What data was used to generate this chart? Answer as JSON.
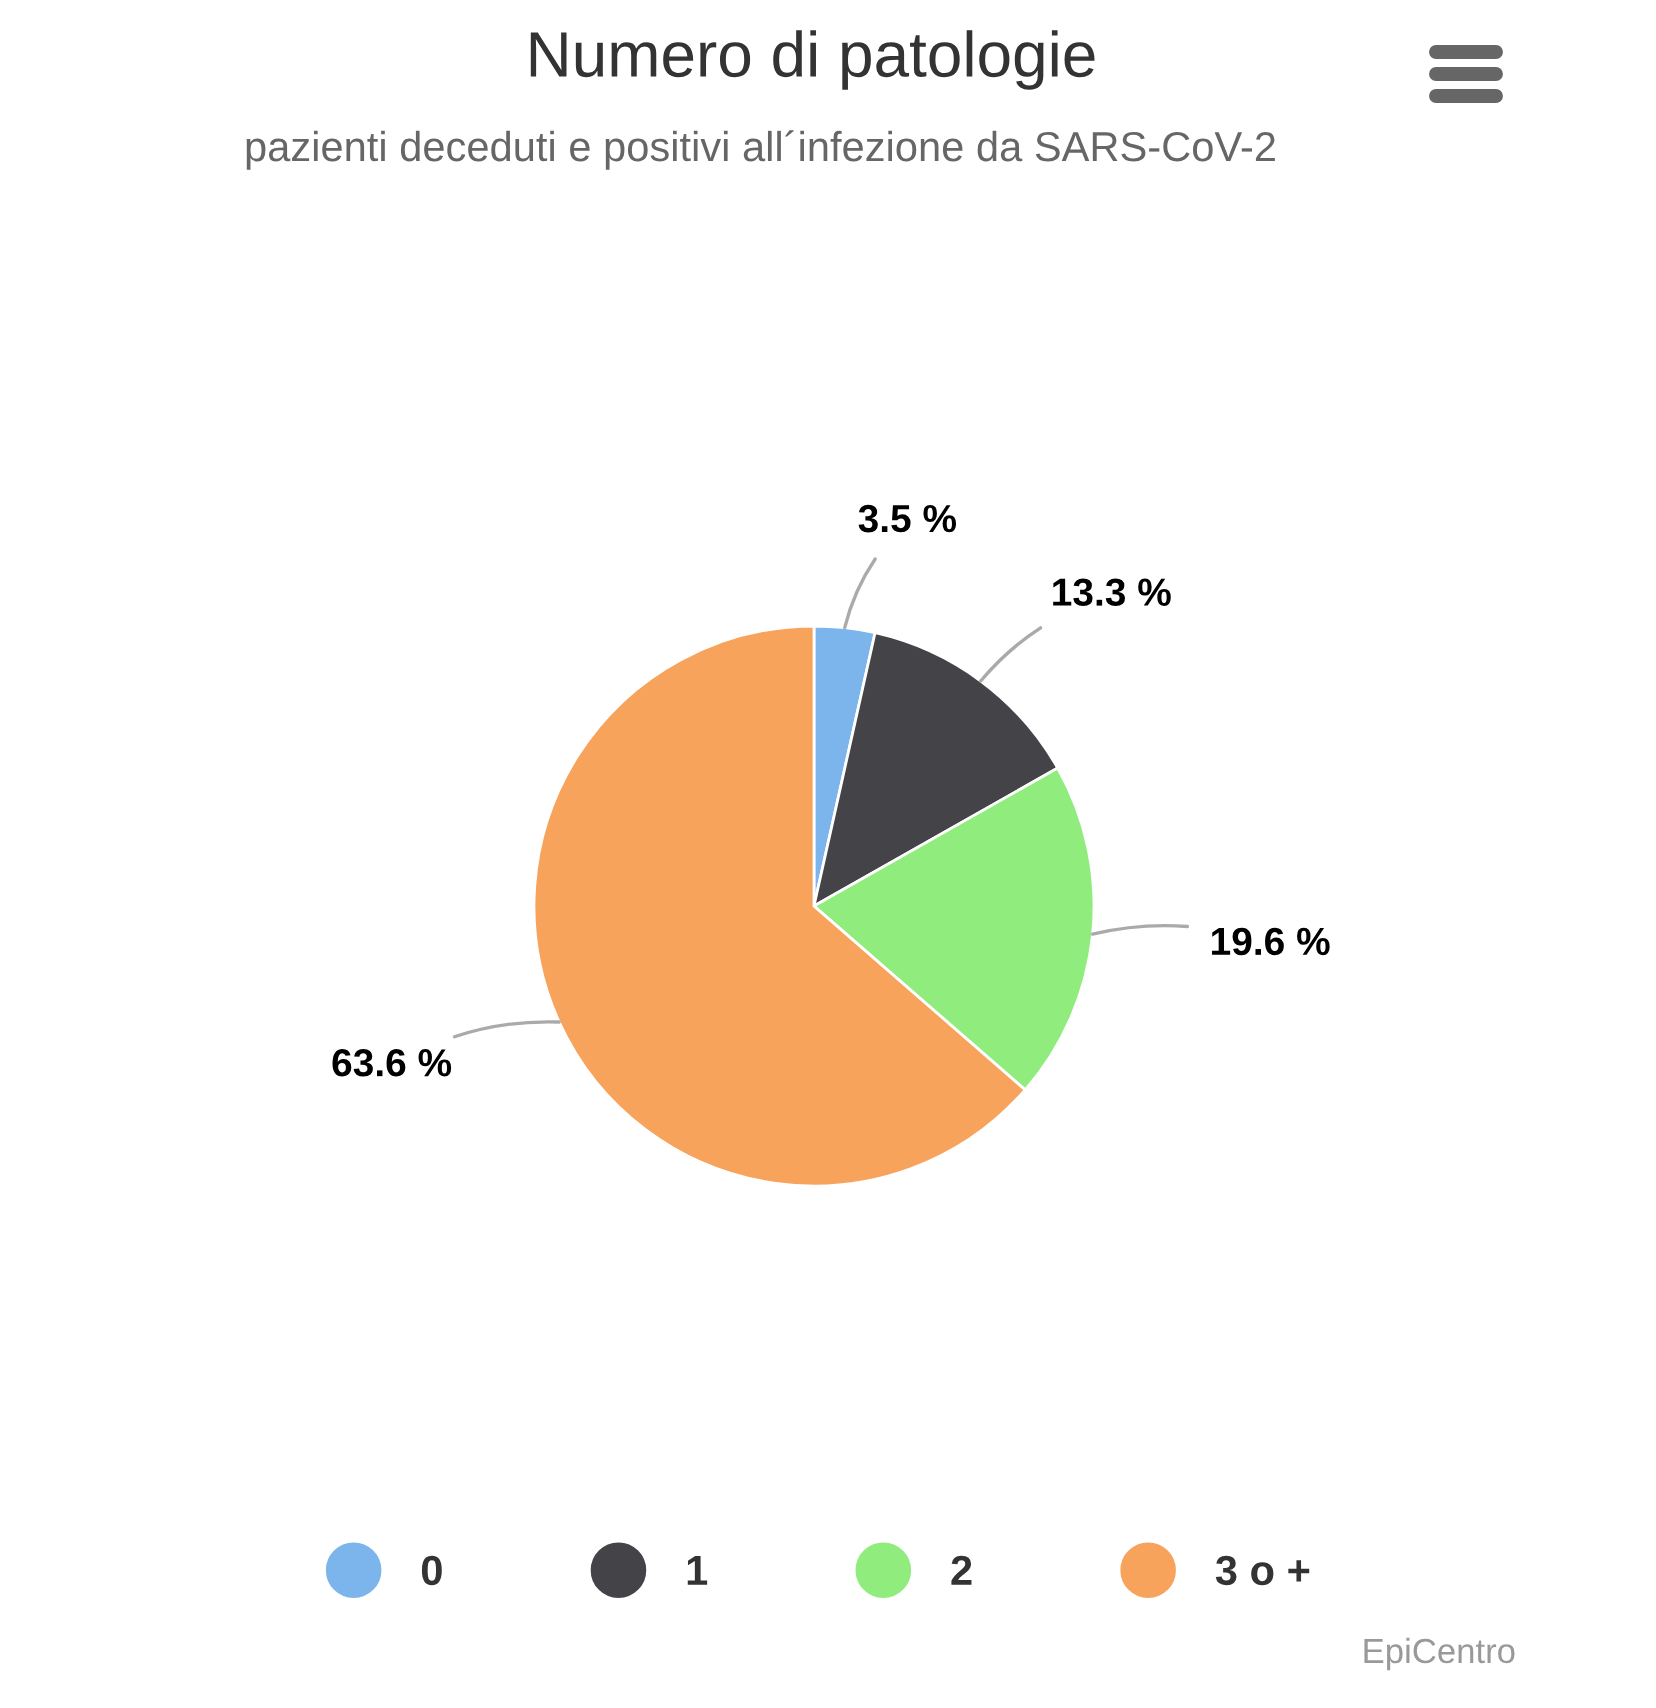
{
  "chart_data": {
    "type": "pie",
    "title": "Numero di patologie",
    "subtitle": "pazienti deceduti e positivi all´infezione da SARS-CoV-2",
    "categories": [
      "0",
      "1",
      "2",
      "3 o +"
    ],
    "values": [
      3.5,
      13.3,
      19.6,
      63.6
    ],
    "colors": [
      "#7cb5ec",
      "#434348",
      "#90ed7d",
      "#f7a35c"
    ],
    "value_labels": [
      "3.5 %",
      "13.3 %",
      "19.6 %",
      "63.6 %"
    ],
    "legend": "bottom",
    "annotations": [
      "EpiCentro"
    ]
  }
}
